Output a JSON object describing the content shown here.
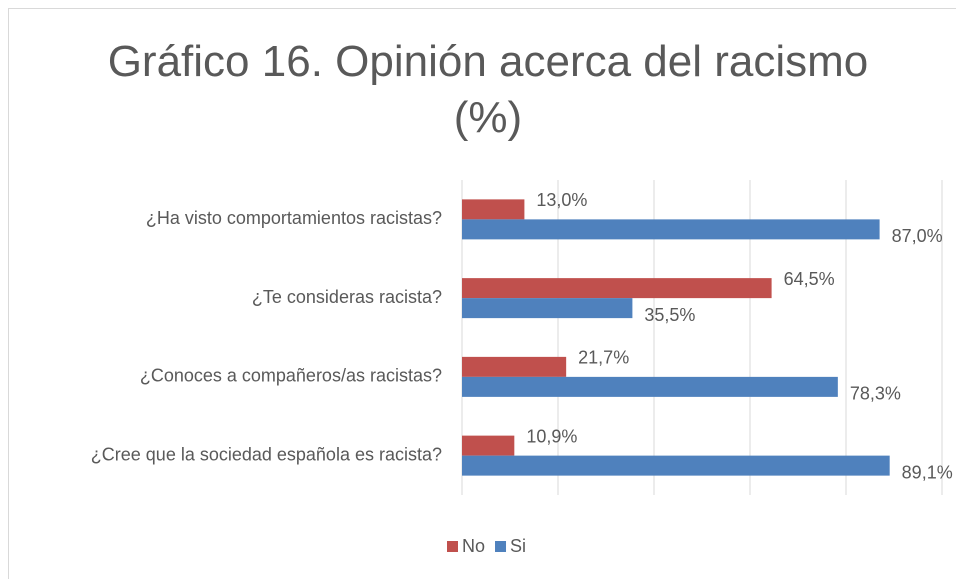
{
  "chart_data": {
    "type": "bar",
    "orientation": "horizontal",
    "title": "Gráfico 16. Opinión acerca del racismo (%)",
    "categories": [
      "¿Ha visto comportamientos racistas?",
      "¿Te consideras racista?",
      "¿Conoces a compañeros/as racistas?",
      "¿Cree que la sociedad española es racista?"
    ],
    "series": [
      {
        "name": "No",
        "color": "#c0504d",
        "values": [
          13.0,
          64.5,
          21.7,
          10.9
        ],
        "value_labels": [
          "13,0%",
          "64,5%",
          "21,7%",
          "10,9%"
        ]
      },
      {
        "name": "Si",
        "color": "#4f81bd",
        "values": [
          87.0,
          35.5,
          78.3,
          89.1
        ],
        "value_labels": [
          "87,0%",
          "35,5%",
          "78,3%",
          "89,1%"
        ]
      }
    ],
    "xlim": [
      0,
      100
    ],
    "xticks": [
      0,
      20,
      40,
      60,
      80,
      100
    ],
    "grid": true,
    "legend": "bottom"
  }
}
